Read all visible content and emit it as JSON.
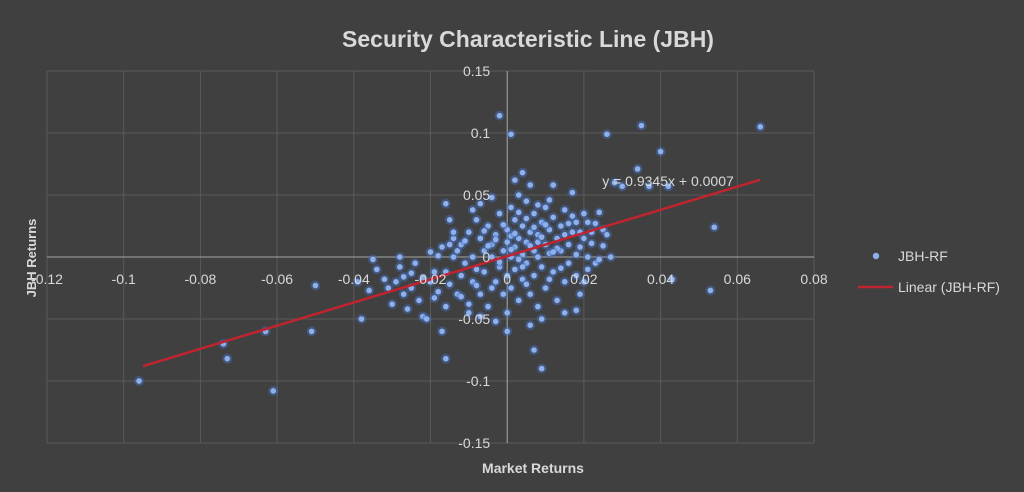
{
  "colors": {
    "background": "#404040",
    "gridline": "#5a5a5a",
    "axis": "#a6a6a6",
    "text": "#d9d9d9",
    "points": "#8fb0ea",
    "points_glow": "#4472c4",
    "trendline": "#c0242f"
  },
  "chart_data": {
    "type": "scatter",
    "title": "Security Characteristic Line (JBH)",
    "xlabel": "Market Returns",
    "ylabel": "JBH Returns",
    "xlim": [
      -0.12,
      0.08
    ],
    "ylim": [
      -0.15,
      0.15
    ],
    "x_ticks": [
      -0.12,
      -0.1,
      -0.08,
      -0.06,
      -0.04,
      -0.02,
      0,
      0.02,
      0.04,
      0.06,
      0.08
    ],
    "x_tick_labels": [
      "-0.12",
      "-0.1",
      "-0.08",
      "-0.06",
      "-0.04",
      "-0.02",
      "0",
      "0.02",
      "0.04",
      "0.06",
      "0.08"
    ],
    "y_ticks": [
      -0.15,
      -0.1,
      -0.05,
      0,
      0.05,
      0.1,
      0.15
    ],
    "y_tick_labels": [
      "-0.15",
      "-0.1",
      "-0.05",
      "0",
      "0.05",
      "0.1",
      "0.15"
    ],
    "grid": true,
    "legend_position": "right",
    "series": [
      {
        "name": "JBH-RF",
        "type": "scatter",
        "points": [
          [
            -0.096,
            -0.1
          ],
          [
            -0.074,
            -0.07
          ],
          [
            -0.073,
            -0.082
          ],
          [
            -0.063,
            -0.06
          ],
          [
            -0.061,
            -0.108
          ],
          [
            -0.051,
            -0.06
          ],
          [
            -0.05,
            -0.023
          ],
          [
            -0.038,
            -0.05
          ],
          [
            -0.035,
            -0.002
          ],
          [
            -0.034,
            -0.01
          ],
          [
            -0.031,
            -0.025
          ],
          [
            -0.03,
            -0.038
          ],
          [
            -0.029,
            -0.02
          ],
          [
            -0.028,
            -0.008
          ],
          [
            -0.027,
            -0.03
          ],
          [
            -0.026,
            -0.042
          ],
          [
            -0.025,
            -0.013
          ],
          [
            -0.024,
            -0.005
          ],
          [
            -0.023,
            -0.035
          ],
          [
            -0.022,
            -0.048
          ],
          [
            -0.021,
            -0.05
          ],
          [
            -0.02,
            -0.02
          ],
          [
            -0.019,
            -0.012
          ],
          [
            -0.018,
            0.001
          ],
          [
            -0.018,
            -0.028
          ],
          [
            -0.017,
            0.008
          ],
          [
            -0.016,
            -0.04
          ],
          [
            -0.016,
            -0.012
          ],
          [
            -0.015,
            -0.022
          ],
          [
            -0.014,
            0.0
          ],
          [
            -0.013,
            0.005
          ],
          [
            -0.013,
            -0.03
          ],
          [
            -0.012,
            0.01
          ],
          [
            -0.012,
            -0.015
          ],
          [
            -0.011,
            -0.005
          ],
          [
            -0.016,
            0.043
          ],
          [
            -0.017,
            -0.06
          ],
          [
            -0.016,
            -0.082
          ],
          [
            -0.015,
            0.03
          ],
          [
            -0.014,
            0.015
          ],
          [
            -0.01,
            -0.045
          ],
          [
            -0.01,
            0.02
          ],
          [
            -0.009,
            -0.02
          ],
          [
            -0.009,
            0.0
          ],
          [
            -0.008,
            0.03
          ],
          [
            -0.008,
            -0.01
          ],
          [
            -0.007,
            0.015
          ],
          [
            -0.007,
            -0.03
          ],
          [
            -0.006,
            0.005
          ],
          [
            -0.006,
            -0.012
          ],
          [
            -0.005,
            0.025
          ],
          [
            -0.005,
            -0.04
          ],
          [
            -0.004,
            0.0
          ],
          [
            -0.004,
            0.01
          ],
          [
            -0.003,
            -0.02
          ],
          [
            -0.003,
            0.018
          ],
          [
            -0.002,
            0.035
          ],
          [
            -0.002,
            -0.008
          ],
          [
            -0.001,
            0.005
          ],
          [
            -0.001,
            -0.03
          ],
          [
            0.0,
            0.012
          ],
          [
            0.0,
            -0.015
          ],
          [
            0.0,
            0.022
          ],
          [
            0.0,
            -0.045
          ],
          [
            0.001,
            0.0
          ],
          [
            0.001,
            0.04
          ],
          [
            0.001,
            -0.025
          ],
          [
            0.002,
            0.008
          ],
          [
            0.002,
            0.03
          ],
          [
            0.002,
            -0.01
          ],
          [
            0.003,
            0.015
          ],
          [
            0.003,
            -0.035
          ],
          [
            0.003,
            0.05
          ],
          [
            0.004,
            0.002
          ],
          [
            0.004,
            -0.018
          ],
          [
            0.004,
            0.025
          ],
          [
            0.005,
            0.045
          ],
          [
            0.005,
            -0.005
          ],
          [
            0.005,
            0.012
          ],
          [
            0.006,
            -0.03
          ],
          [
            0.006,
            0.02
          ],
          [
            0.006,
            0.058
          ],
          [
            0.007,
            0.005
          ],
          [
            0.007,
            -0.015
          ],
          [
            0.007,
            0.035
          ],
          [
            0.008,
            0.0
          ],
          [
            0.008,
            -0.04
          ],
          [
            0.008,
            0.018
          ],
          [
            0.009,
            0.028
          ],
          [
            0.009,
            -0.008
          ],
          [
            0.01,
            0.01
          ],
          [
            0.01,
            -0.025
          ],
          [
            0.01,
            0.04
          ],
          [
            0.011,
            0.003
          ],
          [
            0.011,
            0.022
          ],
          [
            0.012,
            -0.012
          ],
          [
            0.012,
            0.032
          ],
          [
            0.013,
            0.015
          ],
          [
            0.013,
            -0.035
          ],
          [
            0.014,
            0.005
          ],
          [
            0.014,
            0.025
          ],
          [
            0.015,
            -0.02
          ],
          [
            0.015,
            0.038
          ],
          [
            0.016,
            0.01
          ],
          [
            0.016,
            -0.005
          ],
          [
            0.017,
            0.02
          ],
          [
            0.017,
            0.052
          ],
          [
            0.018,
            -0.015
          ],
          [
            0.018,
            0.028
          ],
          [
            0.019,
            0.008
          ],
          [
            0.019,
            -0.03
          ],
          [
            0.02,
            0.015
          ],
          [
            0.02,
            0.035
          ],
          [
            0.021,
            0.0
          ],
          [
            0.021,
            -0.01
          ],
          [
            0.022,
            0.02
          ],
          [
            0.023,
            -0.005
          ],
          [
            0.024,
            0.036
          ],
          [
            0.025,
            0.022
          ],
          [
            0.026,
            0.018
          ],
          [
            0.026,
            0.099
          ],
          [
            0.027,
            0.0
          ],
          [
            0.024,
            -0.002
          ],
          [
            0.028,
            0.06
          ],
          [
            0.03,
            0.057
          ],
          [
            0.034,
            0.071
          ],
          [
            0.035,
            0.106
          ],
          [
            0.037,
            0.057
          ],
          [
            0.04,
            0.085
          ],
          [
            0.042,
            0.057
          ],
          [
            0.043,
            -0.018
          ],
          [
            0.053,
            -0.027
          ],
          [
            0.054,
            0.024
          ],
          [
            0.066,
            0.105
          ],
          [
            -0.002,
            0.114
          ],
          [
            0.001,
            0.099
          ],
          [
            0.004,
            0.068
          ],
          [
            0.007,
            -0.075
          ],
          [
            0.009,
            -0.09
          ],
          [
            0.012,
            0.058
          ],
          [
            -0.004,
            0.048
          ],
          [
            -0.007,
            0.043
          ],
          [
            -0.012,
            -0.032
          ],
          [
            0.015,
            -0.045
          ],
          [
            0.018,
            -0.043
          ],
          [
            0.0,
            -0.06
          ],
          [
            -0.003,
            -0.052
          ],
          [
            0.006,
            -0.055
          ],
          [
            0.009,
            -0.05
          ],
          [
            -0.009,
            0.038
          ],
          [
            0.002,
            0.062
          ],
          [
            -0.001,
            0.026
          ],
          [
            0.001,
            0.017
          ],
          [
            0.003,
            -0.002
          ],
          [
            0.005,
            0.031
          ],
          [
            -0.005,
            0.009
          ],
          [
            0.008,
            0.012
          ],
          [
            -0.006,
            0.021
          ],
          [
            0.011,
            -0.018
          ],
          [
            0.013,
            0.007
          ],
          [
            -0.008,
            -0.023
          ],
          [
            0.016,
            0.027
          ],
          [
            -0.011,
            0.013
          ],
          [
            0.019,
            0.02
          ],
          [
            0.022,
            0.011
          ],
          [
            -0.014,
            0.02
          ],
          [
            0.004,
            -0.008
          ],
          [
            0.006,
            0.009
          ],
          [
            -0.002,
            -0.004
          ],
          [
            0.002,
            0.019
          ],
          [
            0.007,
            0.024
          ],
          [
            0.009,
            0.016
          ],
          [
            0.012,
            0.004
          ],
          [
            0.014,
            -0.009
          ],
          [
            -0.003,
            0.014
          ],
          [
            0.001,
            0.006
          ],
          [
            0.005,
            -0.022
          ],
          [
            0.008,
            0.042
          ],
          [
            0.01,
            0.026
          ],
          [
            0.017,
            0.033
          ],
          [
            0.02,
            -0.02
          ],
          [
            0.023,
            0.027
          ],
          [
            -0.019,
            -0.033
          ],
          [
            -0.022,
            -0.017
          ],
          [
            -0.025,
            -0.025
          ],
          [
            -0.027,
            -0.016
          ],
          [
            -0.032,
            -0.018
          ],
          [
            -0.036,
            -0.027
          ],
          [
            -0.039,
            -0.02
          ],
          [
            -0.028,
            0.0
          ],
          [
            -0.02,
            0.004
          ],
          [
            -0.015,
            0.01
          ],
          [
            -0.01,
            -0.038
          ],
          [
            -0.007,
            -0.048
          ],
          [
            -0.004,
            -0.025
          ],
          [
            0.003,
            0.036
          ],
          [
            0.011,
            0.046
          ],
          [
            0.015,
            0.018
          ],
          [
            0.018,
            0.002
          ],
          [
            0.021,
            0.028
          ],
          [
            0.025,
            0.009
          ]
        ]
      },
      {
        "name": "Linear (JBH-RF)",
        "type": "line",
        "x": [
          -0.095,
          0.066
        ],
        "y": [
          -0.088077,
          0.062377
        ]
      }
    ],
    "annotations": [
      {
        "text": "y = 0.9345x + 0.0007",
        "x": 0.038,
        "y": 0.061
      }
    ]
  }
}
